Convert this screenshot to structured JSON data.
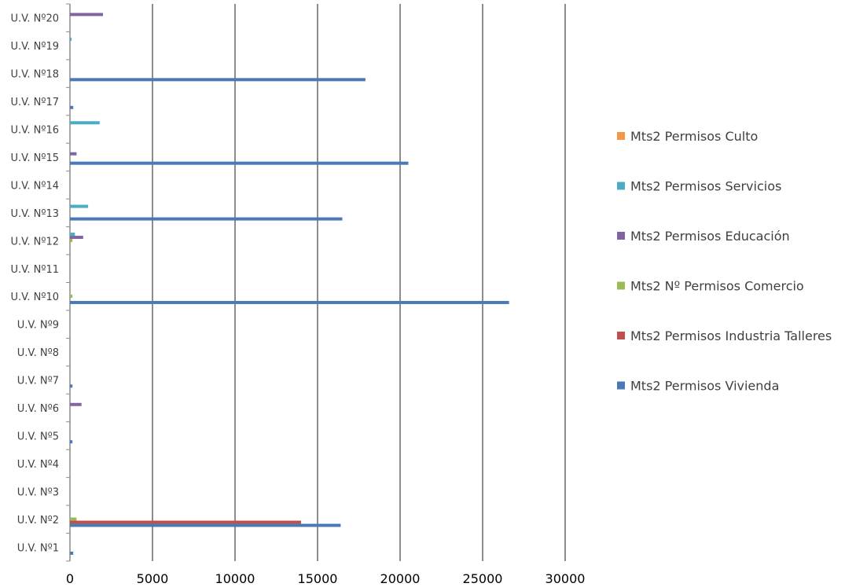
{
  "chart_data": {
    "type": "bar",
    "orientation": "horizontal",
    "categories": [
      "U.V. Nº1",
      "U.V. Nº2",
      "U.V. Nº3",
      "U.V. Nº4",
      "U.V. Nº5",
      "U.V. Nº6",
      "U.V. Nº7",
      "U.V. Nº8",
      "U.V. Nº9",
      "U.V. Nº10",
      "U.V. Nº11",
      "U.V. Nº12",
      "U.V. Nº13",
      "U.V. Nº14",
      "U.V. Nº15",
      "U.V. Nº16",
      "U.V. Nº17",
      "U.V. Nº18",
      "U.V. Nº19",
      "U.V. Nº20"
    ],
    "series": [
      {
        "name": "Mts2 Permisos Vivienda",
        "color": "#4a7ab5",
        "values": [
          200,
          16400,
          0,
          0,
          150,
          0,
          150,
          0,
          0,
          26600,
          0,
          0,
          16500,
          0,
          20500,
          0,
          200,
          17900,
          0,
          0
        ]
      },
      {
        "name": "Mts2 Permisos Industria Talleres",
        "color": "#c0504d",
        "values": [
          0,
          14000,
          0,
          0,
          0,
          0,
          0,
          0,
          0,
          0,
          0,
          0,
          0,
          0,
          0,
          0,
          0,
          0,
          0,
          0
        ]
      },
      {
        "name": "Mts2 Nº Permisos Comercio",
        "color": "#9bbb59",
        "values": [
          0,
          400,
          0,
          0,
          0,
          0,
          0,
          0,
          0,
          150,
          0,
          150,
          0,
          0,
          0,
          0,
          0,
          0,
          0,
          0
        ]
      },
      {
        "name": "Mts2 Permisos Educación",
        "color": "#8064a2",
        "values": [
          0,
          0,
          0,
          0,
          0,
          700,
          0,
          0,
          0,
          0,
          0,
          800,
          0,
          0,
          400,
          0,
          0,
          0,
          0,
          2000
        ]
      },
      {
        "name": "Mts2 Permisos Servicios",
        "color": "#4bacc6",
        "values": [
          0,
          0,
          0,
          0,
          0,
          0,
          0,
          0,
          0,
          0,
          0,
          300,
          1100,
          0,
          0,
          1800,
          0,
          0,
          100,
          0
        ]
      },
      {
        "name": "Mts2 Permisos Culto",
        "color": "#f79646",
        "values": [
          0,
          0,
          0,
          0,
          0,
          0,
          0,
          0,
          0,
          0,
          0,
          0,
          0,
          0,
          0,
          0,
          0,
          0,
          0,
          0
        ]
      }
    ],
    "xlim": [
      0,
      30000
    ],
    "xticks": [
      "0",
      "5000",
      "10000",
      "15000",
      "20000",
      "25000",
      "30000"
    ],
    "grid": "vertical",
    "legend_position": "right",
    "legend_order": [
      "Mts2 Permisos Culto",
      "Mts2 Permisos Servicios",
      "Mts2 Permisos Educación",
      "Mts2 Nº Permisos Comercio",
      "Mts2 Permisos Industria Talleres",
      "Mts2 Permisos Vivienda"
    ]
  }
}
